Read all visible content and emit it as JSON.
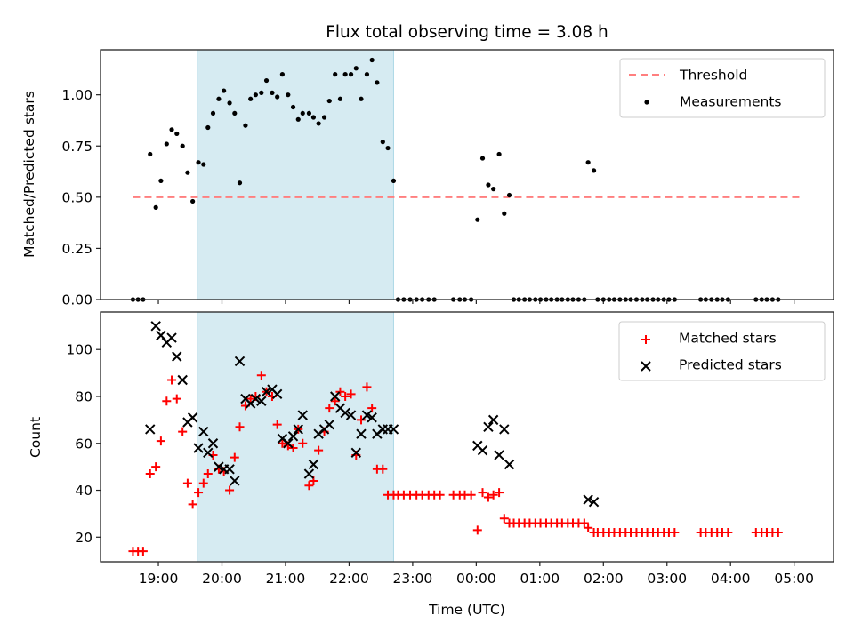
{
  "chart_data": [
    {
      "type": "scatter",
      "title": "Flux total observing time = 3.08 h",
      "xlabel": "",
      "ylabel": "Matched/Predicted stars",
      "ylim": [
        0,
        1.22
      ],
      "xlim": [
        18.09,
        29.62
      ],
      "yticks": [
        0.0,
        0.25,
        0.5,
        0.75,
        1.0
      ],
      "ytick_labels": [
        "0.00",
        "0.25",
        "0.50",
        "0.75",
        "1.00"
      ],
      "x_unit": "hours UTC (values >24 are after midnight)",
      "shaded_span": {
        "start": 19.61,
        "end": 22.7,
        "color": "#add8e6"
      },
      "legend": {
        "placement": "top-right",
        "entries": [
          "Threshold",
          "Measurements"
        ]
      },
      "threshold": {
        "name": "Threshold",
        "value": 0.5,
        "x_start": 18.6,
        "x_end": 29.15,
        "color": "#ff7f7f",
        "style": "dashed"
      },
      "series": [
        {
          "name": "Measurements",
          "color": "#000000",
          "x": [
            18.6,
            18.68,
            18.76,
            18.87,
            18.96,
            19.04,
            19.13,
            19.21,
            19.29,
            19.38,
            19.46,
            19.54,
            19.63,
            19.71,
            19.78,
            19.86,
            19.95,
            20.03,
            20.12,
            20.2,
            20.28,
            20.37,
            20.45,
            20.53,
            20.62,
            20.7,
            20.79,
            20.87,
            20.95,
            21.04,
            21.12,
            21.2,
            21.27,
            21.37,
            21.44,
            21.52,
            21.61,
            21.69,
            21.78,
            21.86,
            21.94,
            22.03,
            22.11,
            22.19,
            22.28,
            22.36,
            22.44,
            22.53,
            22.61,
            22.7,
            22.77,
            22.86,
            22.96,
            23.06,
            23.15,
            23.25,
            23.34,
            23.64,
            23.74,
            23.82,
            23.92,
            24.02,
            24.1,
            24.19,
            24.27,
            24.36,
            24.44,
            24.52,
            24.59,
            24.67,
            24.76,
            24.84,
            24.93,
            25.01,
            25.1,
            25.18,
            25.27,
            25.35,
            25.44,
            25.52,
            25.61,
            25.7,
            25.76,
            25.85,
            25.91,
            26.0,
            26.09,
            26.17,
            26.26,
            26.35,
            26.43,
            26.52,
            26.61,
            26.69,
            26.78,
            26.86,
            26.95,
            27.03,
            27.12,
            27.53,
            27.61,
            27.7,
            27.79,
            27.87,
            27.96,
            28.4,
            28.49,
            28.57,
            28.66,
            28.75
          ],
          "y": [
            0,
            0,
            0,
            0.71,
            0.45,
            0.58,
            0.76,
            0.83,
            0.81,
            0.75,
            0.62,
            0.48,
            0.67,
            0.66,
            0.84,
            0.91,
            0.98,
            1.02,
            0.96,
            0.91,
            0.57,
            0.85,
            0.98,
            1.0,
            1.01,
            1.07,
            1.01,
            0.99,
            1.1,
            1.0,
            0.94,
            0.88,
            0.91,
            0.91,
            0.89,
            0.86,
            0.89,
            0.97,
            1.1,
            0.98,
            1.1,
            1.1,
            1.13,
            0.98,
            1.1,
            1.17,
            1.06,
            0.77,
            0.74,
            0.58,
            0,
            0,
            0,
            0,
            0,
            0,
            0,
            0,
            0,
            0,
            0,
            0.39,
            0.69,
            0.56,
            0.54,
            0.71,
            0.42,
            0.51,
            0,
            0,
            0,
            0,
            0,
            0,
            0,
            0,
            0,
            0,
            0,
            0,
            0,
            0,
            0.67,
            0.63,
            0,
            0,
            0,
            0,
            0,
            0,
            0,
            0,
            0,
            0,
            0,
            0,
            0,
            0,
            0,
            0,
            0,
            0,
            0,
            0,
            0,
            0,
            0,
            0,
            0,
            0
          ]
        }
      ]
    },
    {
      "type": "scatter",
      "title": "",
      "xlabel": "Time (UTC)",
      "ylabel": "Count",
      "ylim": [
        9.5,
        116
      ],
      "xlim": [
        18.09,
        29.62
      ],
      "yticks": [
        20,
        40,
        60,
        80,
        100
      ],
      "ytick_labels": [
        "20",
        "40",
        "60",
        "80",
        "100"
      ],
      "xticks": [
        19,
        20,
        21,
        22,
        23,
        24,
        25,
        26,
        27,
        28,
        29
      ],
      "xtick_labels": [
        "19:00",
        "20:00",
        "21:00",
        "22:00",
        "23:00",
        "00:00",
        "01:00",
        "02:00",
        "03:00",
        "04:00",
        "05:00"
      ],
      "shaded_span": {
        "start": 19.61,
        "end": 22.7,
        "color": "#add8e6"
      },
      "legend": {
        "placement": "top-right",
        "entries": [
          "Matched stars",
          "Predicted stars"
        ]
      },
      "series": [
        {
          "name": "Matched stars",
          "marker": "+",
          "color": "#ff0000",
          "x": [
            18.6,
            18.68,
            18.76,
            18.87,
            18.96,
            19.04,
            19.13,
            19.21,
            19.29,
            19.38,
            19.46,
            19.54,
            19.63,
            19.71,
            19.78,
            19.86,
            19.95,
            20.03,
            20.12,
            20.2,
            20.28,
            20.37,
            20.45,
            20.53,
            20.62,
            20.7,
            20.79,
            20.87,
            20.95,
            21.04,
            21.12,
            21.2,
            21.27,
            21.37,
            21.44,
            21.52,
            21.61,
            21.69,
            21.78,
            21.86,
            21.94,
            22.03,
            22.11,
            22.19,
            22.28,
            22.36,
            22.44,
            22.53,
            22.61,
            22.7,
            22.77,
            22.86,
            22.96,
            23.06,
            23.15,
            23.25,
            23.34,
            23.43,
            23.64,
            23.74,
            23.82,
            23.92,
            24.02,
            24.1,
            24.19,
            24.27,
            24.36,
            24.44,
            24.52,
            24.59,
            24.67,
            24.76,
            24.84,
            24.93,
            25.01,
            25.1,
            25.18,
            25.27,
            25.35,
            25.44,
            25.52,
            25.61,
            25.7,
            25.76,
            25.85,
            25.91,
            26.0,
            26.09,
            26.17,
            26.26,
            26.35,
            26.43,
            26.52,
            26.61,
            26.69,
            26.78,
            26.86,
            26.95,
            27.03,
            27.12,
            27.53,
            27.61,
            27.7,
            27.79,
            27.87,
            27.96,
            28.4,
            28.49,
            28.57,
            28.66,
            28.75
          ],
          "y": [
            14,
            14,
            14,
            47,
            50,
            61,
            78,
            87,
            79,
            65,
            43,
            34,
            39,
            43,
            47,
            55,
            49,
            48,
            40,
            54,
            67,
            76,
            79,
            80,
            89,
            82,
            80,
            68,
            60,
            59,
            58,
            66,
            60,
            42,
            44,
            57,
            65,
            75,
            78,
            82,
            80,
            81,
            55,
            70,
            84,
            75,
            49,
            49,
            38,
            38,
            38,
            38,
            38,
            38,
            38,
            38,
            38,
            38,
            38,
            38,
            38,
            38,
            23,
            39,
            37,
            38,
            39,
            28,
            26,
            26,
            26,
            26,
            26,
            26,
            26,
            26,
            26,
            26,
            26,
            26,
            26,
            26,
            26,
            24,
            22,
            22,
            22,
            22,
            22,
            22,
            22,
            22,
            22,
            22,
            22,
            22,
            22,
            22,
            22,
            22,
            22,
            22,
            22,
            22,
            22,
            22,
            22,
            22,
            22,
            22,
            22
          ]
        },
        {
          "name": "Predicted stars",
          "marker": "x",
          "color": "#000000",
          "x": [
            18.87,
            18.96,
            19.04,
            19.13,
            19.21,
            19.29,
            19.38,
            19.46,
            19.54,
            19.63,
            19.71,
            19.78,
            19.86,
            19.95,
            20.03,
            20.12,
            20.2,
            20.28,
            20.37,
            20.45,
            20.53,
            20.62,
            20.7,
            20.79,
            20.87,
            20.95,
            21.04,
            21.12,
            21.2,
            21.27,
            21.37,
            21.44,
            21.52,
            21.61,
            21.69,
            21.78,
            21.86,
            21.94,
            22.03,
            22.11,
            22.19,
            22.28,
            22.36,
            22.44,
            22.53,
            22.61,
            22.7,
            24.02,
            24.1,
            24.19,
            24.27,
            24.36,
            24.44,
            24.52,
            25.76,
            25.85
          ],
          "y": [
            66,
            110,
            106,
            103,
            105,
            97,
            87,
            69,
            71,
            58,
            65,
            56,
            60,
            50,
            49,
            49,
            44,
            95,
            79,
            77,
            79,
            78,
            82,
            83,
            81,
            62,
            60,
            63,
            66,
            72,
            47,
            51,
            64,
            66,
            68,
            80,
            75,
            73,
            72,
            56,
            64,
            72,
            71,
            64,
            66,
            66,
            66,
            59,
            57,
            67,
            70,
            55,
            66,
            51,
            36,
            35
          ]
        }
      ]
    }
  ]
}
